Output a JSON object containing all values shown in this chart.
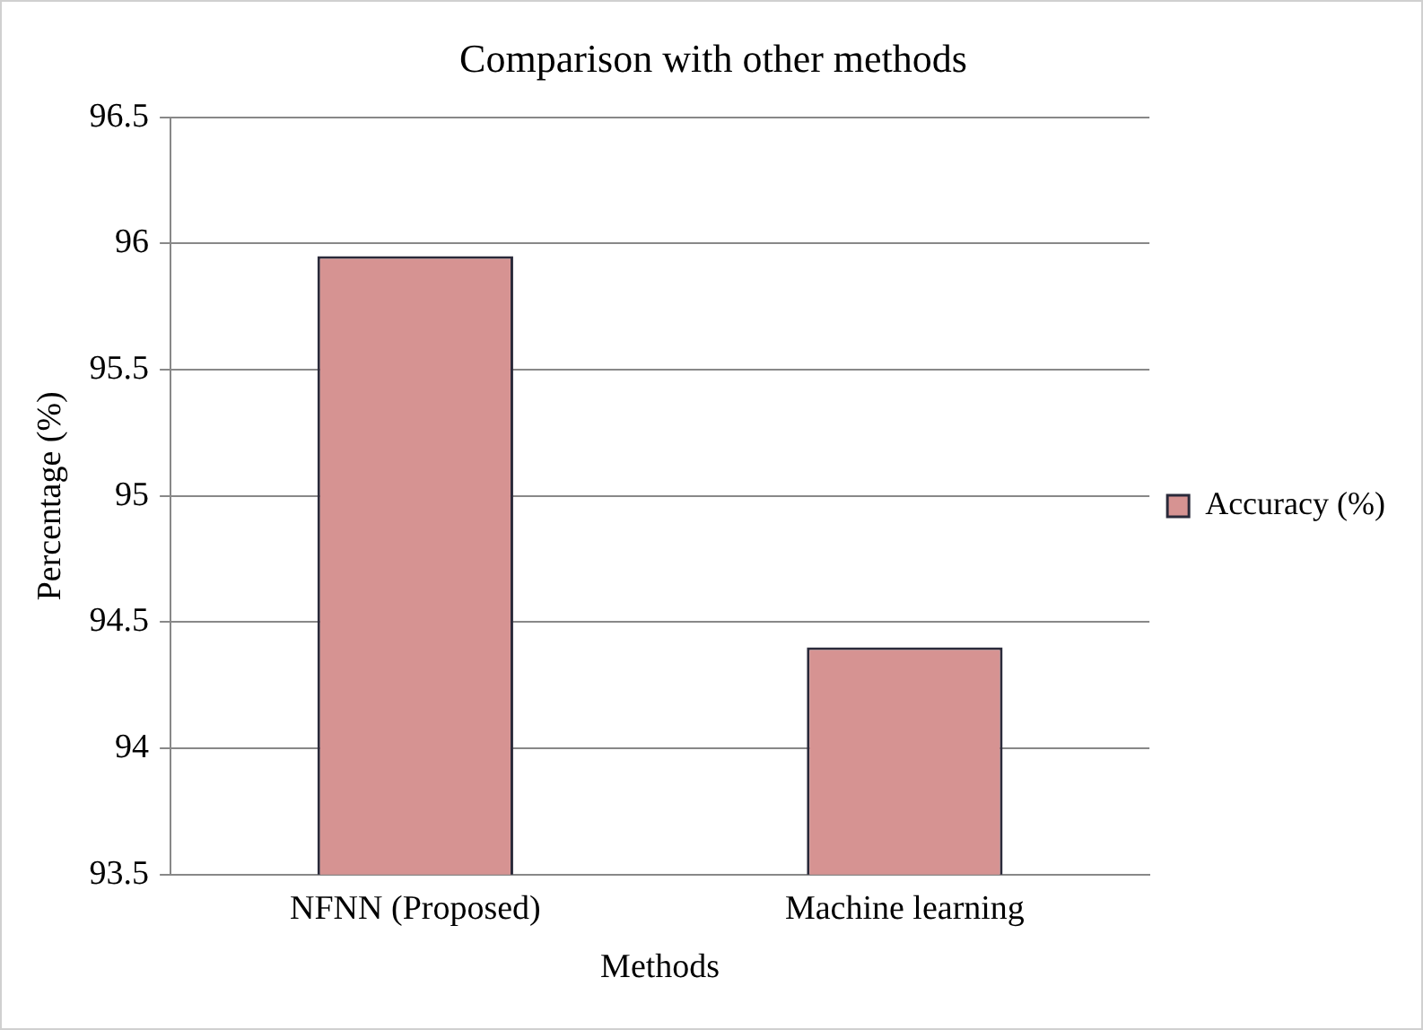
{
  "chart_data": {
    "type": "bar",
    "title": "Comparison with other methods",
    "xlabel": "Methods",
    "ylabel": "Percentage (%)",
    "categories": [
      "NFNN (Proposed)",
      "Machine learning"
    ],
    "series": [
      {
        "name": "Accuracy (%)",
        "color": "#d69392",
        "values": [
          95.95,
          94.4
        ]
      }
    ],
    "ylim": [
      93.5,
      96.5
    ],
    "yticks": [
      {
        "value": 93.5,
        "label": "93.5"
      },
      94,
      {
        "value": 94.5,
        "label": "94.5"
      },
      95,
      {
        "value": 95.5,
        "label": "95.5"
      },
      96,
      {
        "value": 96.5,
        "label": "96.5"
      }
    ],
    "grid": "y",
    "legend": "right"
  }
}
